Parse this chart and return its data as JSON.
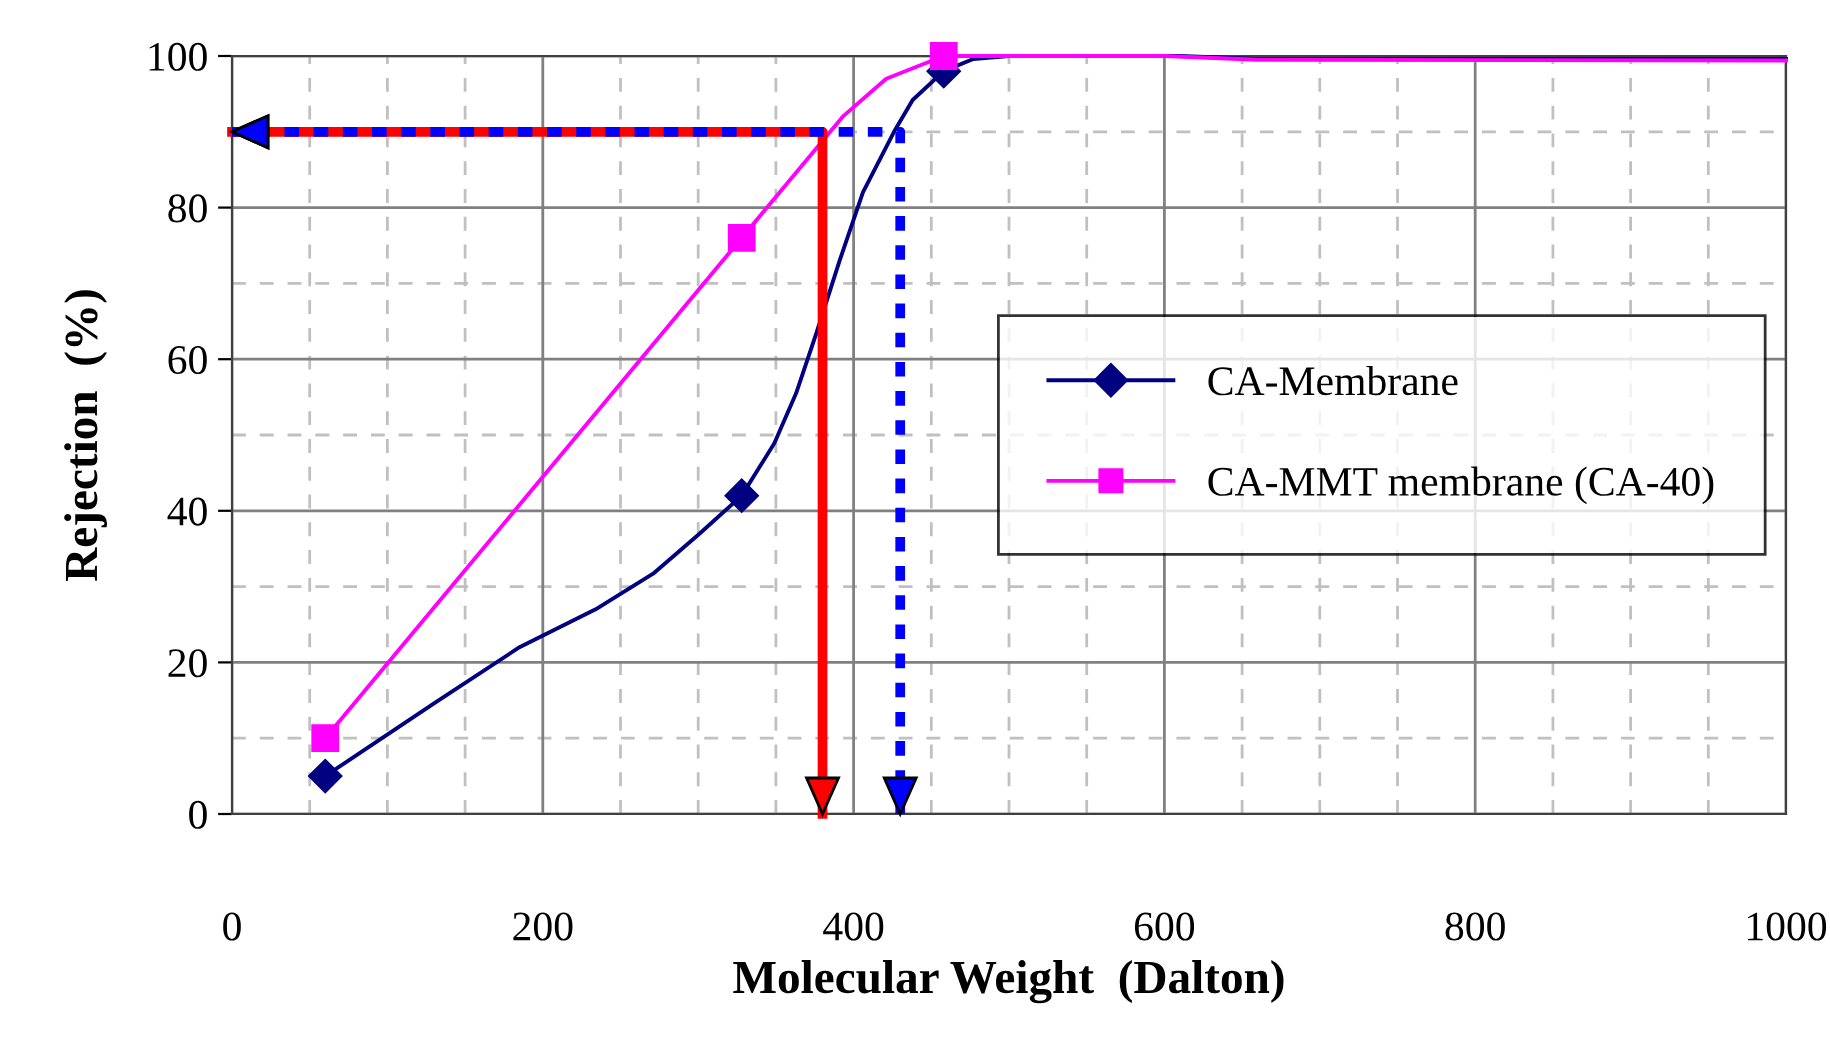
{
  "chart_data": {
    "type": "line",
    "xlabel": "Molecular Weight  (Dalton)",
    "ylabel": "Rejection  (%)",
    "xlim": [
      0,
      1000
    ],
    "xticks": [
      0,
      200,
      400,
      600,
      800,
      1000
    ],
    "ylim": [
      0,
      100
    ],
    "yticks": [
      0,
      20,
      40,
      60,
      80,
      100
    ],
    "grid": true,
    "legend": "right",
    "series": [
      {
        "color": "#000080",
        "marker": "none",
        "x": [
          60,
          130,
          185,
          234,
          271,
          301,
          328,
          349,
          363,
          376,
          391,
          406,
          426,
          438,
          458,
          477,
          500,
          610,
          660,
          1000
        ],
        "values": [
          5,
          14.6,
          22,
          27,
          31.7,
          37,
          42,
          48.9,
          55.5,
          63.4,
          73,
          82,
          90,
          94.2,
          98,
          99.6,
          100,
          100,
          99.6,
          99.6
        ]
      },
      {
        "color": "#ff00ff",
        "marker": "none",
        "x": [
          60,
          328,
          393,
          421,
          458,
          600,
          660,
          1000
        ],
        "values": [
          10,
          76,
          92,
          97,
          100,
          100,
          99.5,
          99.4
        ]
      },
      {
        "type": "scatter",
        "name": "CA-Membrane",
        "color": "#000080",
        "marker": "diamond",
        "x": [
          60,
          328,
          458
        ],
        "values": [
          5,
          42,
          98
        ]
      },
      {
        "type": "scatter",
        "name": "CA-MMT membrane (CA-40)",
        "color": "#ff00ff",
        "marker": "square",
        "x": [
          60,
          328,
          458
        ],
        "values": [
          10,
          76,
          100
        ]
      }
    ]
  }
}
